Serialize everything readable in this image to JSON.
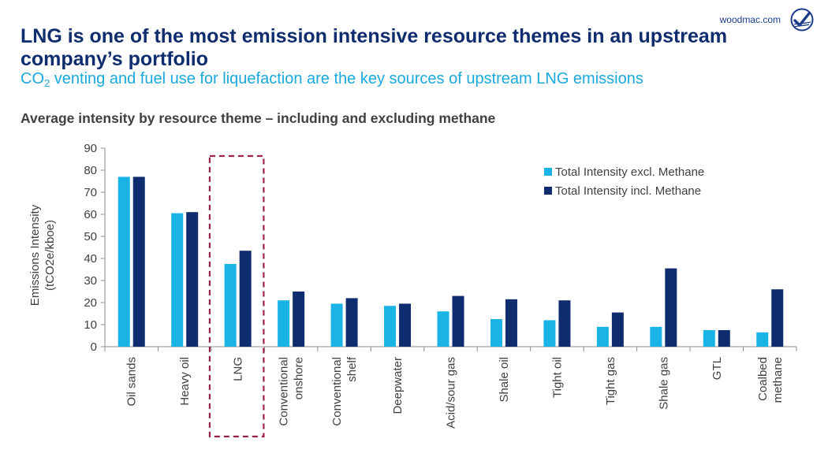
{
  "header": {
    "brand_url": "woodmac.com",
    "title": "LNG is one of the most emission intensive resource themes in an upstream company’s portfolio",
    "subtitle_pre": "CO",
    "subtitle_sub": "2",
    "subtitle_post": " venting and fuel use for liquefaction are the key sources of upstream LNG emissions",
    "logo_icon": "woodmac-check-logo-icon"
  },
  "chart_data": {
    "type": "bar",
    "title": "Average intensity by resource theme – including and excluding methane",
    "xlabel": "",
    "ylabel": [
      "Emissions Intensity",
      "(tCO2e/kboe)"
    ],
    "ylim": [
      0,
      90
    ],
    "yticks": [
      0,
      10,
      20,
      30,
      40,
      50,
      60,
      70,
      80,
      90
    ],
    "grid": false,
    "legend_position": "top-right",
    "categories": [
      [
        "Oil sands"
      ],
      [
        "Heavy oil"
      ],
      [
        "LNG"
      ],
      [
        "Conventional",
        "onshore"
      ],
      [
        "Conventional",
        "shelf"
      ],
      [
        "Deepwater"
      ],
      [
        "Acid/sour gas"
      ],
      [
        "Shale oil"
      ],
      [
        "Tight oil"
      ],
      [
        "Tight gas"
      ],
      [
        "Shale gas"
      ],
      [
        "GTL"
      ],
      [
        "Coalbed",
        "methane"
      ]
    ],
    "series": [
      {
        "name": "Total Intensity excl. Methane",
        "color": "#19b3e6",
        "values": [
          77,
          60.5,
          37.5,
          21,
          19.5,
          18.5,
          16,
          12.5,
          12,
          9,
          9,
          7.5,
          6.5
        ]
      },
      {
        "name": "Total Intensity incl. Methane",
        "color": "#0f2d6e",
        "values": [
          77,
          61,
          43.5,
          25,
          22,
          19.5,
          23,
          21.5,
          21,
          15.5,
          35.5,
          7.5,
          26
        ]
      }
    ],
    "highlight_category": "LNG",
    "highlight_color": "#9b2245"
  }
}
